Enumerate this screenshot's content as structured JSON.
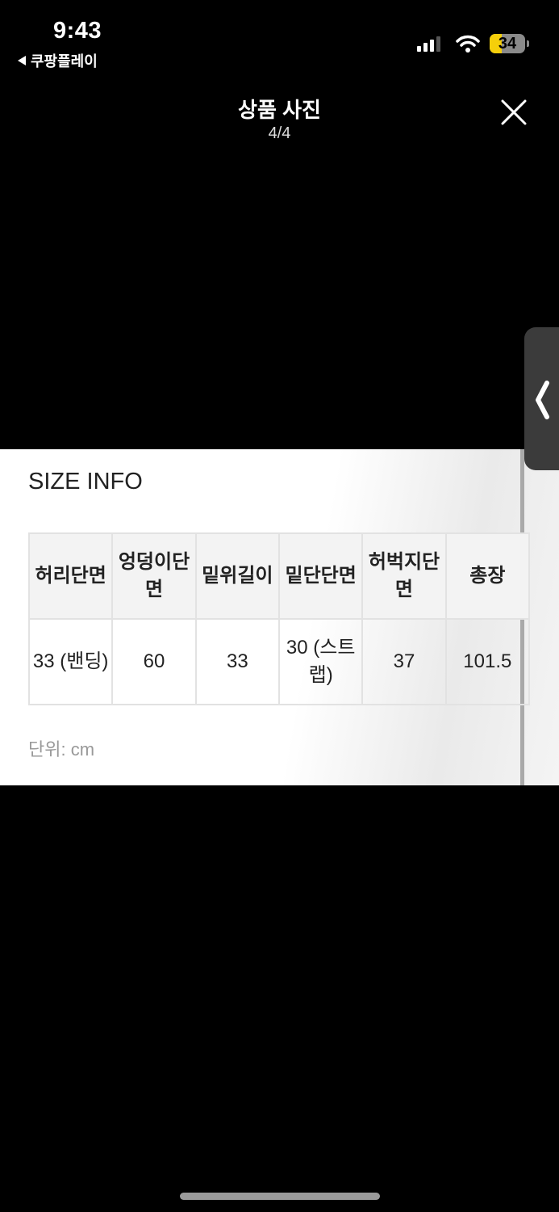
{
  "status_bar": {
    "time": "9:43",
    "back_app": "쿠팡플레이",
    "battery": "34",
    "battery_color": "#f5cf0a"
  },
  "header": {
    "title": "상품 사진",
    "counter": "4/4",
    "close_icon": "close-icon"
  },
  "size_info": {
    "title": "SIZE INFO",
    "headers": [
      "허리단면",
      "엉덩이단면",
      "밑위길이",
      "밑단단면",
      "허벅지단면",
      "총장"
    ],
    "values": [
      "33 (밴딩)",
      "60",
      "33",
      "30 (스트랩)",
      "37",
      "101.5"
    ],
    "unit": "단위: cm"
  },
  "side_handle": {
    "icon": "chevron-left-icon"
  }
}
